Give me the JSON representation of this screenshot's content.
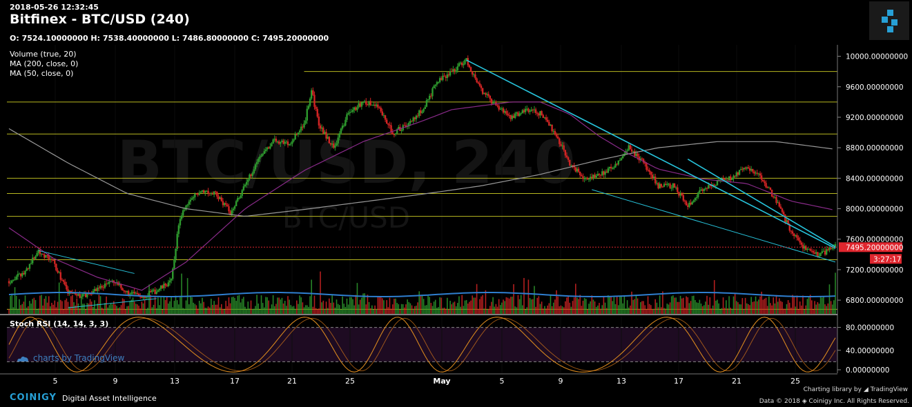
{
  "header": {
    "timestamp": "2018-05-26 12:32:45",
    "title": "Bitfinex - BTC/USD (240)",
    "ohlc": "O: 7524.10000000 H: 7538.40000000 L: 7486.80000000 C: 7495.20000000"
  },
  "indicators": {
    "volume": "Volume (true, 20)",
    "ma200": "MA (200, close, 0)",
    "ma50": "MA (50, close, 0)",
    "stoch": "Stoch RSI (14, 14, 3, 3)"
  },
  "watermark": {
    "symbol": "BTC/USD, 240",
    "sub": "BTC/USD",
    "tv": "charts by TradingView"
  },
  "colors": {
    "up": "#2e9b2e",
    "down": "#d22424",
    "ma200": "#9a9a9a",
    "ma50": "#8a2b8a",
    "trend": "#27c4dc",
    "level": "#b9b920",
    "price_tag": "#e0262e",
    "stoch_k": "#d7871e",
    "stoch_bg": "#1e0b22",
    "brand": "#27a0d6"
  },
  "chart_data": {
    "type": "candlestick",
    "x_ticks": [
      "5",
      "9",
      "13",
      "17",
      "21",
      "25",
      "May",
      "5",
      "9",
      "13",
      "17",
      "21",
      "25"
    ],
    "y_ticks": [
      "10000.00000000",
      "9600.00000000",
      "9200.00000000",
      "8800.00000000",
      "8400.00000000",
      "8000.00000000",
      "7600.00000000",
      "7200.00000000",
      "6800.00000000"
    ],
    "y_range": [
      6620,
      10150
    ],
    "last_price": "7495.20000000",
    "last_price_value": 7495.2,
    "countdown": "3:27:17",
    "horizontal_levels": [
      9800,
      9400,
      8980,
      8400,
      8200,
      7900,
      7330,
      6680
    ],
    "price_path": [
      [
        0,
        7050
      ],
      [
        10,
        7150
      ],
      [
        20,
        7450
      ],
      [
        30,
        7300
      ],
      [
        40,
        6900
      ],
      [
        50,
        6850
      ],
      [
        60,
        6950
      ],
      [
        70,
        7050
      ],
      [
        80,
        6900
      ],
      [
        90,
        6850
      ],
      [
        100,
        6920
      ],
      [
        110,
        7050
      ],
      [
        115,
        7800
      ],
      [
        120,
        8050
      ],
      [
        130,
        8250
      ],
      [
        140,
        8200
      ],
      [
        150,
        7950
      ],
      [
        160,
        8300
      ],
      [
        170,
        8700
      ],
      [
        180,
        8900
      ],
      [
        190,
        8850
      ],
      [
        200,
        9100
      ],
      [
        205,
        9550
      ],
      [
        210,
        9100
      ],
      [
        220,
        8800
      ],
      [
        230,
        9250
      ],
      [
        240,
        9400
      ],
      [
        250,
        9350
      ],
      [
        260,
        9000
      ],
      [
        270,
        9100
      ],
      [
        280,
        9300
      ],
      [
        290,
        9650
      ],
      [
        300,
        9800
      ],
      [
        310,
        9950
      ],
      [
        320,
        9550
      ],
      [
        330,
        9350
      ],
      [
        340,
        9200
      ],
      [
        350,
        9300
      ],
      [
        360,
        9250
      ],
      [
        370,
        9000
      ],
      [
        380,
        8600
      ],
      [
        390,
        8400
      ],
      [
        400,
        8450
      ],
      [
        410,
        8550
      ],
      [
        420,
        8800
      ],
      [
        430,
        8600
      ],
      [
        440,
        8300
      ],
      [
        450,
        8300
      ],
      [
        460,
        8050
      ],
      [
        470,
        8250
      ],
      [
        480,
        8350
      ],
      [
        490,
        8400
      ],
      [
        500,
        8550
      ],
      [
        510,
        8400
      ],
      [
        520,
        8100
      ],
      [
        530,
        7700
      ],
      [
        540,
        7450
      ],
      [
        550,
        7400
      ],
      [
        560,
        7500
      ]
    ],
    "ma200": [
      [
        0,
        9050
      ],
      [
        40,
        8600
      ],
      [
        80,
        8200
      ],
      [
        120,
        8000
      ],
      [
        160,
        7900
      ],
      [
        200,
        7990
      ],
      [
        240,
        8090
      ],
      [
        280,
        8190
      ],
      [
        320,
        8300
      ],
      [
        360,
        8450
      ],
      [
        400,
        8640
      ],
      [
        440,
        8800
      ],
      [
        480,
        8880
      ],
      [
        520,
        8880
      ],
      [
        560,
        8780
      ]
    ],
    "ma50": [
      [
        0,
        7750
      ],
      [
        30,
        7350
      ],
      [
        60,
        7100
      ],
      [
        90,
        6930
      ],
      [
        120,
        7300
      ],
      [
        160,
        8000
      ],
      [
        200,
        8500
      ],
      [
        240,
        8880
      ],
      [
        280,
        9150
      ],
      [
        300,
        9300
      ],
      [
        340,
        9400
      ],
      [
        360,
        9400
      ],
      [
        380,
        9240
      ],
      [
        400,
        8950
      ],
      [
        420,
        8720
      ],
      [
        440,
        8520
      ],
      [
        470,
        8390
      ],
      [
        500,
        8330
      ],
      [
        530,
        8100
      ],
      [
        560,
        7980
      ]
    ],
    "trendlines": [
      [
        [
          20,
          7450
        ],
        [
          85,
          7150
        ]
      ],
      [
        [
          40,
          6700
        ],
        [
          100,
          6820
        ]
      ],
      [
        [
          310,
          9950
        ],
        [
          560,
          7480
        ]
      ],
      [
        [
          460,
          8650
        ],
        [
          560,
          7500
        ]
      ],
      [
        [
          395,
          8250
        ],
        [
          560,
          7300
        ]
      ]
    ],
    "stoch": {
      "ticks": [
        "80.00000000",
        "40.00000000",
        "0.00000000"
      ],
      "range": [
        0,
        100
      ],
      "guides": [
        80,
        20
      ]
    }
  }
}
